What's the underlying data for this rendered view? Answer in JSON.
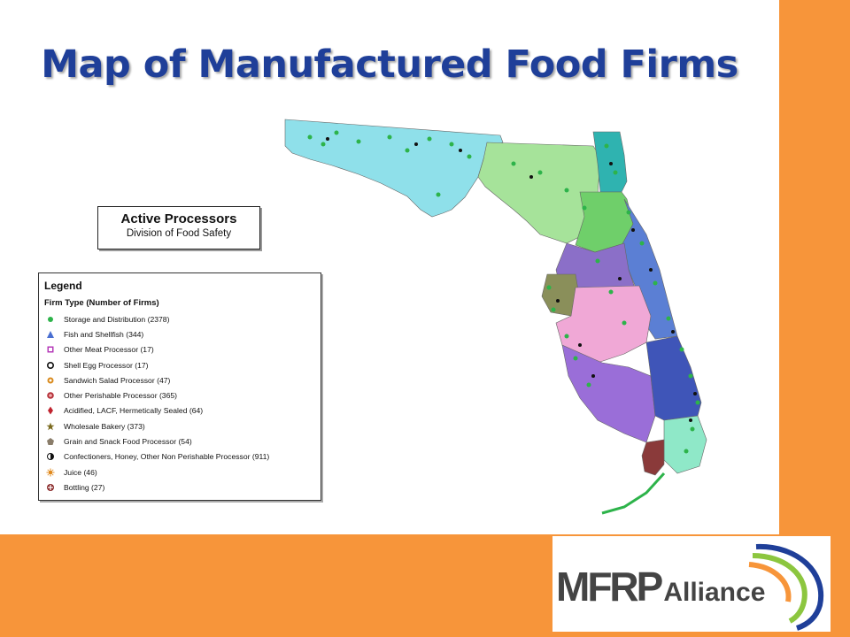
{
  "slide": {
    "title": "Map of Manufactured Food Firms",
    "accent_color": "#f7953a",
    "title_color": "#1f3f99"
  },
  "active_box": {
    "title": "Active Processors",
    "subtitle": "Division of Food Safety"
  },
  "legend": {
    "title": "Legend",
    "subtitle": "Firm Type (Number of Firms)",
    "items": [
      {
        "label": "Storage and Distribution (2378)",
        "symbol": "green-dot-icon",
        "color": "#2db34a"
      },
      {
        "label": "Fish and Shellfish (344)",
        "symbol": "blue-triangle-icon",
        "color": "#4a6fd1"
      },
      {
        "label": "Other Meat Processor (17)",
        "symbol": "purple-square-icon",
        "color": "#b53ab8"
      },
      {
        "label": "Shell Egg Processor (17)",
        "symbol": "black-ring-icon",
        "color": "#111111"
      },
      {
        "label": "Sandwich Salad Processor (47)",
        "symbol": "orange-ring-icon",
        "color": "#d98a1c"
      },
      {
        "label": "Other Perishable Processor (365)",
        "symbol": "red-target-icon",
        "color": "#b5323a"
      },
      {
        "label": "Acidified, LACF, Hermetically Sealed (64)",
        "symbol": "red-diamond-icon",
        "color": "#c0232e"
      },
      {
        "label": "Wholesale Bakery (373)",
        "symbol": "olive-star-icon",
        "color": "#7a6a1e"
      },
      {
        "label": "Grain and Snack Food Processor (54)",
        "symbol": "gray-pentagon-icon",
        "color": "#8a7d6a"
      },
      {
        "label": "Confectioners, Honey, Other Non Perishable Processor (911)",
        "symbol": "half-black-circle-icon",
        "color": "#111111"
      },
      {
        "label": "Juice (46)",
        "symbol": "orange-sun-icon",
        "color": "#e08a1e"
      },
      {
        "label": "Bottling (27)",
        "symbol": "maroon-cross-icon",
        "color": "#8a2a2a"
      }
    ]
  },
  "logo": {
    "primary": "MFRP",
    "secondary": "Alliance"
  }
}
